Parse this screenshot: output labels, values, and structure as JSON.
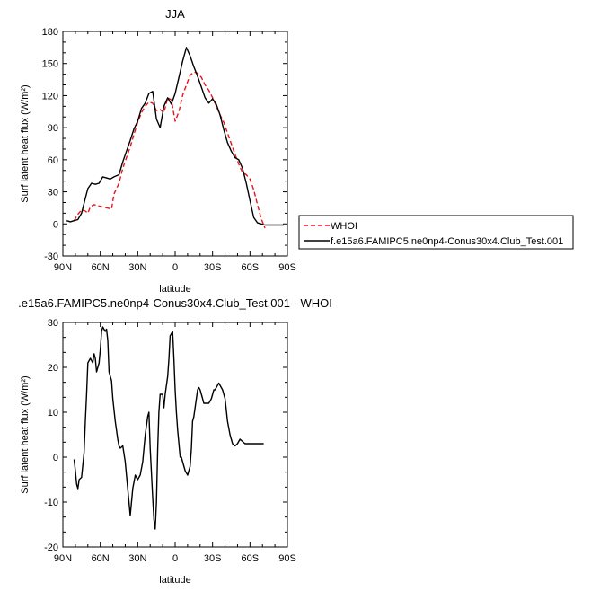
{
  "chart_data": [
    {
      "type": "line",
      "title": "JJA",
      "xlabel": "latitude",
      "ylabel": "Surf latent heat flux (W/m²)",
      "xlim": [
        90,
        -90
      ],
      "ylim": [
        -30,
        180
      ],
      "xticks": [
        90,
        60,
        30,
        0,
        -30,
        -60,
        -90
      ],
      "xtick_labels": [
        "90N",
        "60N",
        "30N",
        "0",
        "30S",
        "60S",
        "90S"
      ],
      "yticks": [
        -30,
        0,
        30,
        60,
        90,
        120,
        150,
        180
      ],
      "ytick_labels": [
        "-30",
        "0",
        "30",
        "60",
        "90",
        "120",
        "150",
        "180"
      ],
      "legend": "right",
      "series": [
        {
          "name": "WHOI",
          "color": "#e8141a",
          "dash": "dashed",
          "x": [
            81,
            78,
            75,
            72,
            70,
            68,
            65,
            62,
            59,
            55,
            51,
            49,
            45,
            42,
            39,
            36,
            33,
            30,
            27,
            24,
            21,
            18,
            15,
            12,
            9,
            6,
            3,
            0,
            -3,
            -6,
            -9,
            -12,
            -15,
            -18,
            -21,
            -24,
            -27,
            -30,
            -33,
            -36,
            -39,
            -42,
            -45,
            -48,
            -51,
            -54,
            -57,
            -60,
            -63,
            -66,
            -69,
            -72
          ],
          "y": [
            3,
            9,
            13,
            12,
            10,
            16,
            18,
            17,
            16,
            15,
            14,
            28,
            38,
            52,
            62,
            72,
            84,
            95,
            104,
            110,
            114,
            113,
            106,
            107,
            104,
            118,
            116,
            96,
            105,
            120,
            130,
            139,
            142,
            141,
            137,
            130,
            125,
            118,
            110,
            102,
            95,
            85,
            75,
            65,
            56,
            48,
            46,
            42,
            32,
            18,
            5,
            -4
          ]
        },
        {
          "name": "f.e15a6.FAMIPC5.ne0np4-Conus30x4.Club_Test.001",
          "color": "#000000",
          "dash": "solid",
          "x": [
            87,
            84,
            81,
            78,
            75,
            72,
            70,
            67,
            64,
            61,
            58,
            55,
            52,
            49,
            45,
            42,
            39,
            36,
            33,
            30,
            27,
            24,
            21,
            18,
            15,
            12,
            9,
            6,
            3,
            0,
            -3,
            -6,
            -9,
            -12,
            -15,
            -18,
            -21,
            -24,
            -27,
            -30,
            -33,
            -36,
            -39,
            -42,
            -45,
            -48,
            -51,
            -54,
            -57,
            -60,
            -63,
            -66,
            -69,
            -72,
            -75,
            -78,
            -81,
            -84,
            -87
          ],
          "y": [
            3,
            2,
            3,
            4,
            10,
            24,
            33,
            38,
            37,
            38,
            44,
            43,
            42,
            44,
            46,
            58,
            68,
            78,
            89,
            96,
            108,
            113,
            122,
            124,
            98,
            90,
            110,
            118,
            112,
            122,
            137,
            152,
            165,
            157,
            147,
            138,
            128,
            118,
            113,
            117,
            112,
            102,
            88,
            76,
            68,
            62,
            60,
            52,
            38,
            22,
            6,
            1,
            0,
            -1,
            -1,
            -1,
            -1,
            -1,
            -1
          ]
        }
      ]
    },
    {
      "type": "line",
      "title": ".e15a6.FAMIPC5.ne0np4-Conus30x4.Club_Test.001 - WHOI",
      "xlabel": "latitude",
      "ylabel": "Surf latent heat flux (W/m²)",
      "xlim": [
        90,
        -90
      ],
      "ylim": [
        -20,
        30
      ],
      "xticks": [
        90,
        60,
        30,
        0,
        -30,
        -60,
        -90
      ],
      "xtick_labels": [
        "90N",
        "60N",
        "30N",
        "0",
        "30S",
        "60S",
        "90S"
      ],
      "yticks": [
        -20,
        -10,
        0,
        10,
        20,
        30
      ],
      "ytick_labels": [
        "-20",
        "-10",
        "0",
        "10",
        "20",
        "30"
      ],
      "series": [
        {
          "color": "#000000",
          "x": [
            81,
            80,
            79,
            78,
            77,
            75,
            73,
            72,
            71,
            70,
            68,
            66,
            65,
            64,
            63,
            62,
            61,
            60,
            59,
            58,
            57,
            56,
            55,
            54,
            53,
            52,
            51,
            50,
            48,
            46,
            45,
            44,
            42,
            40,
            38,
            36,
            34,
            32,
            30,
            28,
            26,
            24,
            22,
            21,
            20,
            18,
            17,
            16,
            15,
            14,
            13,
            12,
            11,
            10,
            9,
            8,
            7,
            6,
            5,
            4,
            3,
            2,
            1,
            0,
            -1,
            -2,
            -3,
            -4,
            -5,
            -6,
            -7,
            -8,
            -9,
            -10,
            -11,
            -12,
            -13,
            -14,
            -15,
            -16,
            -17,
            -18,
            -19,
            -20,
            -21,
            -22,
            -23,
            -24,
            -25,
            -26,
            -27,
            -28,
            -29,
            -30,
            -31,
            -32,
            -33,
            -34,
            -35,
            -36,
            -37,
            -38,
            -40,
            -42,
            -44,
            -46,
            -48,
            -50,
            -52,
            -54,
            -56,
            -58,
            -60,
            -61,
            -62,
            -63,
            -64,
            -65,
            -66,
            -67,
            -68,
            -69,
            -70,
            -71
          ],
          "y": [
            -0.5,
            -3,
            -6,
            -7,
            -5,
            -4.5,
            1,
            8,
            14,
            21,
            22,
            21,
            23,
            22,
            19,
            20,
            21,
            24,
            28,
            29,
            28.5,
            28,
            28.5,
            26,
            19,
            18,
            17,
            13,
            8,
            4,
            2.5,
            2,
            2.5,
            -1,
            -7,
            -13,
            -7,
            -4,
            -5,
            -4,
            -1,
            5,
            9,
            10,
            2,
            -9,
            -14,
            -16,
            -10,
            2,
            10,
            14,
            14,
            14,
            11,
            14,
            16,
            18,
            22,
            27,
            27.5,
            28,
            22,
            15,
            10,
            6,
            3,
            0,
            0,
            -1,
            -2,
            -3,
            -3.5,
            -4,
            -3,
            -2,
            2,
            8,
            9,
            11,
            13,
            15,
            15.5,
            15,
            14,
            13,
            12,
            12,
            12,
            12,
            12,
            12.5,
            13,
            14,
            15,
            15,
            15.5,
            16,
            16.5,
            16,
            15.5,
            15,
            13,
            8,
            5,
            3,
            2.5,
            3,
            4,
            3.5,
            3,
            3,
            3,
            3,
            3,
            3,
            3,
            3,
            3,
            3,
            3,
            3,
            3,
            3
          ]
        }
      ]
    }
  ]
}
